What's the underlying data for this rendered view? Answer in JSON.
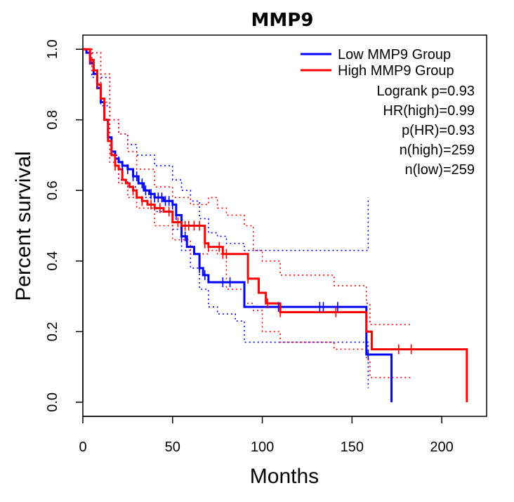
{
  "chart_data": {
    "type": "line",
    "title": "MMP9",
    "xlabel": "Months",
    "ylabel": "Percent survival",
    "xlim": [
      0,
      225
    ],
    "ylim": [
      -0.04,
      1.04
    ],
    "xticks": [
      0,
      50,
      100,
      150,
      200
    ],
    "xtick_labels": [
      "0",
      "50",
      "100",
      "150",
      "200"
    ],
    "yticks": [
      0.0,
      0.2,
      0.4,
      0.6,
      0.8,
      1.0
    ],
    "ytick_labels": [
      "0.0",
      "0.2",
      "0.4",
      "0.6",
      "0.8",
      "1.0"
    ],
    "legend_position": "top-right",
    "series": [
      {
        "name": "Low MMP9 Group",
        "color": "#0000ff",
        "x": [
          0,
          2,
          4,
          6,
          8,
          10,
          12,
          14,
          16,
          18,
          20,
          22,
          25,
          28,
          31,
          34,
          37,
          40,
          45,
          50,
          52,
          55,
          58,
          62,
          65,
          67,
          70,
          73,
          78,
          85,
          90,
          100,
          110,
          130,
          150,
          158,
          162,
          172
        ],
        "y": [
          1.0,
          0.99,
          0.96,
          0.93,
          0.89,
          0.85,
          0.8,
          0.75,
          0.71,
          0.69,
          0.68,
          0.67,
          0.66,
          0.64,
          0.62,
          0.6,
          0.59,
          0.58,
          0.57,
          0.56,
          0.53,
          0.47,
          0.44,
          0.42,
          0.38,
          0.36,
          0.34,
          0.34,
          0.34,
          0.34,
          0.27,
          0.27,
          0.27,
          0.27,
          0.27,
          0.135,
          0.135,
          0.0
        ],
        "censor_x": [
          22,
          25,
          28,
          30,
          33,
          35,
          38,
          40,
          42,
          44,
          46,
          48,
          50,
          52,
          55,
          57,
          65,
          68,
          78,
          82,
          109,
          132,
          134,
          142,
          159
        ],
        "ci_upper_x": [
          0,
          5,
          10,
          15,
          20,
          25,
          30,
          40,
          50,
          55,
          60,
          65,
          70,
          75,
          80,
          90,
          100,
          120,
          140,
          158,
          159
        ],
        "ci_upper": [
          1.0,
          0.99,
          0.92,
          0.8,
          0.76,
          0.73,
          0.7,
          0.67,
          0.63,
          0.6,
          0.57,
          0.52,
          0.48,
          0.47,
          0.45,
          0.43,
          0.43,
          0.43,
          0.43,
          0.43,
          0.58
        ],
        "ci_lower_x": [
          0,
          5,
          10,
          15,
          20,
          25,
          30,
          40,
          50,
          55,
          60,
          65,
          70,
          75,
          85,
          90,
          100,
          120,
          140,
          158,
          159
        ],
        "ci_lower": [
          1.0,
          0.92,
          0.84,
          0.7,
          0.63,
          0.61,
          0.58,
          0.54,
          0.49,
          0.43,
          0.38,
          0.32,
          0.27,
          0.25,
          0.23,
          0.17,
          0.17,
          0.17,
          0.17,
          0.17,
          0.04
        ]
      },
      {
        "name": "High MMP9 Group",
        "color": "#ff0000",
        "x": [
          0,
          2,
          4,
          6,
          8,
          10,
          12,
          14,
          16,
          18,
          20,
          22,
          24,
          26,
          28,
          30,
          33,
          36,
          40,
          45,
          50,
          55,
          57,
          65,
          68,
          70,
          78,
          80,
          90,
          92,
          98,
          102,
          110,
          158,
          161,
          163,
          175,
          214
        ],
        "y": [
          1.0,
          1.0,
          0.97,
          0.94,
          0.9,
          0.86,
          0.8,
          0.74,
          0.7,
          0.67,
          0.66,
          0.63,
          0.62,
          0.61,
          0.6,
          0.58,
          0.57,
          0.56,
          0.55,
          0.54,
          0.51,
          0.5,
          0.5,
          0.5,
          0.45,
          0.44,
          0.42,
          0.42,
          0.42,
          0.35,
          0.31,
          0.28,
          0.255,
          0.2,
          0.15,
          0.15,
          0.15,
          0.0
        ],
        "censor_x": [
          4,
          8,
          18,
          28,
          33,
          38,
          43,
          48,
          53,
          57,
          59,
          62,
          65,
          68,
          70,
          76,
          78,
          80,
          92,
          103,
          110,
          141,
          176,
          183
        ],
        "ci_upper_x": [
          0,
          5,
          10,
          15,
          20,
          25,
          30,
          40,
          50,
          60,
          70,
          75,
          80,
          90,
          95,
          100,
          110,
          140,
          158,
          160,
          183
        ],
        "ci_upper": [
          1.0,
          0.99,
          0.93,
          0.8,
          0.76,
          0.71,
          0.66,
          0.61,
          0.58,
          0.56,
          0.58,
          0.55,
          0.53,
          0.5,
          0.43,
          0.4,
          0.36,
          0.33,
          0.28,
          0.22,
          0.22
        ],
        "ci_lower_x": [
          0,
          5,
          10,
          15,
          20,
          25,
          30,
          40,
          50,
          60,
          70,
          75,
          80,
          90,
          95,
          100,
          110,
          140,
          158,
          160,
          183
        ],
        "ci_lower": [
          1.0,
          0.93,
          0.85,
          0.68,
          0.62,
          0.58,
          0.55,
          0.5,
          0.46,
          0.42,
          0.43,
          0.42,
          0.32,
          0.28,
          0.26,
          0.2,
          0.17,
          0.15,
          0.12,
          0.07,
          0.07
        ]
      }
    ],
    "annotations": [
      "Logrank p=0.93",
      "HR(high)=0.99",
      "p(HR)=0.93",
      "n(high)=259",
      "n(low)=259"
    ]
  }
}
